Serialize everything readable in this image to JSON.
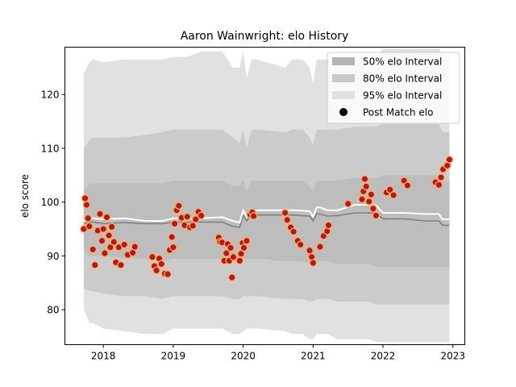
{
  "chart_data": {
    "type": "area",
    "title": "Aaron Wainwright: elo History",
    "xlabel": "",
    "ylabel": "elo score",
    "xlim": [
      2017.45,
      2023.17
    ],
    "ylim": [
      73.5,
      128.8
    ],
    "x_ticks": [
      {
        "value": 2018,
        "label": "2018"
      },
      {
        "value": 2019,
        "label": "2019"
      },
      {
        "value": 2020,
        "label": "2020"
      },
      {
        "value": 2021,
        "label": "2021"
      },
      {
        "value": 2022,
        "label": "2022"
      },
      {
        "value": 2023,
        "label": "2023"
      }
    ],
    "y_ticks": [
      {
        "value": 80,
        "label": "80"
      },
      {
        "value": 90,
        "label": "90"
      },
      {
        "value": 100,
        "label": "100"
      },
      {
        "value": 110,
        "label": "110"
      },
      {
        "value": 120,
        "label": "120"
      }
    ],
    "legend": {
      "position": "top-right",
      "entries": [
        {
          "label": "50% elo Interval",
          "kind": "band",
          "color": "#b4b4b4"
        },
        {
          "label": "80% elo Interval",
          "kind": "band",
          "color": "#c8c8c8"
        },
        {
          "label": "95% elo Interval",
          "kind": "band",
          "color": "#e1e1e1"
        },
        {
          "label": "Post Match elo",
          "kind": "marker",
          "color": "#000000"
        }
      ]
    },
    "colors": {
      "band95": "#e1e1e1",
      "band80": "#cbcbcb",
      "band50": "#bdbdbd",
      "mean_line": "#808080",
      "median_line": "#ffffff",
      "marker_fill": "#c0102a",
      "marker_edge": "#f5b84a"
    },
    "x": [
      2017.72,
      2017.8,
      2017.85,
      2018.0,
      2018.3,
      2018.6,
      2018.85,
      2019.0,
      2019.2,
      2019.4,
      2019.7,
      2019.85,
      2019.95,
      2020.0,
      2020.05,
      2020.12,
      2020.2,
      2020.6,
      2020.7,
      2020.85,
      2020.95,
      2021.0,
      2021.05,
      2021.1,
      2021.2,
      2021.35,
      2021.6,
      2021.8,
      2021.9,
      2022.0,
      2022.3,
      2022.6,
      2022.8,
      2022.85,
      2022.95
    ],
    "series": [
      {
        "name": "95% elo Interval",
        "role": "band95",
        "upper": [
          124,
          126,
          126.5,
          126,
          126.5,
          126.5,
          126.5,
          127,
          127,
          128,
          128,
          125,
          125,
          128,
          123,
          126.5,
          126.5,
          125,
          126.5,
          126.5,
          125,
          122,
          126.5,
          126.5,
          126.5,
          126.5,
          127,
          127,
          127,
          128.5,
          128.5,
          128.5,
          128.5,
          126.5,
          126.5
        ],
        "lower": [
          80,
          77.5,
          77.5,
          76.5,
          76,
          75.5,
          75.5,
          76.5,
          76.5,
          76.5,
          76.5,
          75.5,
          75.5,
          76,
          76.5,
          76.5,
          76.5,
          76,
          75.5,
          75.5,
          74.5,
          74.5,
          75.5,
          75.5,
          75.5,
          74.5,
          74.5,
          74.5,
          74,
          74,
          74,
          74,
          74,
          74,
          74
        ]
      },
      {
        "name": "80% elo Interval",
        "role": "band80",
        "upper": [
          110,
          111.5,
          112,
          112,
          112,
          112.5,
          113,
          113.5,
          113.5,
          113.5,
          113.5,
          112,
          111,
          113.5,
          110,
          113.5,
          113.5,
          113,
          113.5,
          113.5,
          112,
          110.5,
          113.5,
          113.5,
          113.5,
          113.5,
          114,
          114,
          114,
          114.5,
          114.5,
          114.5,
          114.5,
          113,
          113
        ],
        "lower": [
          84,
          83.5,
          83.5,
          83,
          82.5,
          82.5,
          82,
          82.5,
          82.5,
          82.5,
          82.5,
          82,
          82,
          82.5,
          82.5,
          82.5,
          82.5,
          82,
          82,
          82,
          81.5,
          81.5,
          82,
          82,
          82,
          81.5,
          81.5,
          81.5,
          81,
          81,
          81,
          81,
          81,
          81,
          81
        ]
      },
      {
        "name": "50% elo Interval",
        "role": "band50",
        "upper": [
          102,
          103.5,
          103.5,
          103.5,
          103.5,
          103.5,
          103.5,
          104,
          104,
          104,
          104,
          103,
          103,
          104,
          102,
          104,
          104,
          104,
          104,
          104,
          103,
          102,
          104,
          104,
          104,
          104,
          104.5,
          104.5,
          104.5,
          105,
          105,
          105,
          105,
          104,
          104
        ],
        "lower": [
          91,
          90,
          90,
          90,
          89.5,
          89.5,
          89,
          89.5,
          89.5,
          89.5,
          89.5,
          89,
          89,
          89.5,
          89.5,
          89.5,
          89.5,
          89,
          89,
          89,
          88.5,
          88.5,
          89,
          89,
          89,
          88.5,
          88.5,
          88.5,
          88,
          88,
          88,
          88,
          88,
          88,
          88
        ]
      },
      {
        "role": "mean",
        "values": [
          96,
          96.3,
          96.3,
          96,
          96.2,
          96,
          96,
          96.3,
          96.3,
          96.3,
          96.3,
          95.5,
          95.3,
          97.5,
          96.5,
          97.6,
          97.6,
          97.6,
          97.6,
          97.5,
          97.4,
          96.5,
          97.8,
          97.8,
          97.4,
          97.5,
          98,
          98,
          97.9,
          96.9,
          96.9,
          96.5,
          96.5,
          95.7,
          95.7
        ]
      },
      {
        "role": "median",
        "values": [
          96.5,
          97,
          97,
          96.8,
          97,
          96.5,
          96.5,
          97,
          97,
          97,
          97.2,
          96.5,
          96.2,
          98.5,
          97.3,
          98.3,
          98.5,
          98.5,
          98.5,
          98.4,
          98.3,
          97.3,
          99,
          99,
          98.5,
          98.5,
          99.5,
          99.5,
          99.4,
          98,
          98,
          97.8,
          97.8,
          96.8,
          96.8
        ]
      }
    ],
    "points": [
      [
        2017.72,
        95
      ],
      [
        2017.74,
        100.7
      ],
      [
        2017.76,
        99.5
      ],
      [
        2017.78,
        97
      ],
      [
        2017.8,
        95.5
      ],
      [
        2017.85,
        91.2
      ],
      [
        2017.88,
        88.3
      ],
      [
        2017.92,
        94.7
      ],
      [
        2017.95,
        97.8
      ],
      [
        2017.98,
        92.8
      ],
      [
        2018.0,
        95
      ],
      [
        2018.02,
        90.5
      ],
      [
        2018.05,
        97.2
      ],
      [
        2018.08,
        93.8
      ],
      [
        2018.1,
        91.6
      ],
      [
        2018.12,
        95.4
      ],
      [
        2018.15,
        92.6
      ],
      [
        2018.18,
        88.8
      ],
      [
        2018.22,
        91.6
      ],
      [
        2018.25,
        88.3
      ],
      [
        2018.3,
        92.1
      ],
      [
        2018.35,
        90.2
      ],
      [
        2018.42,
        90.6
      ],
      [
        2018.45,
        91.7
      ],
      [
        2018.7,
        89.8
      ],
      [
        2018.73,
        88.1
      ],
      [
        2018.76,
        87.3
      ],
      [
        2018.8,
        89.5
      ],
      [
        2018.83,
        88.5
      ],
      [
        2018.88,
        86.7
      ],
      [
        2018.92,
        86.6
      ],
      [
        2018.95,
        91.1
      ],
      [
        2018.98,
        93.5
      ],
      [
        2019.0,
        91.6
      ],
      [
        2019.02,
        96
      ],
      [
        2019.05,
        98.5
      ],
      [
        2019.08,
        99.3
      ],
      [
        2019.12,
        97.1
      ],
      [
        2019.16,
        95.7
      ],
      [
        2019.2,
        97.3
      ],
      [
        2019.24,
        95.3
      ],
      [
        2019.28,
        95.6
      ],
      [
        2019.32,
        96.8
      ],
      [
        2019.36,
        98.2
      ],
      [
        2019.4,
        97.5
      ],
      [
        2019.65,
        93.4
      ],
      [
        2019.67,
        92.6
      ],
      [
        2019.7,
        92.5
      ],
      [
        2019.73,
        89.1
      ],
      [
        2019.76,
        90.5
      ],
      [
        2019.78,
        92.2
      ],
      [
        2019.8,
        89.1
      ],
      [
        2019.82,
        91.5
      ],
      [
        2019.84,
        86.0
      ],
      [
        2019.86,
        89.8
      ],
      [
        2019.95,
        89.1
      ],
      [
        2019.97,
        90.4
      ],
      [
        2019.99,
        92.4
      ],
      [
        2020.01,
        91.5
      ],
      [
        2020.05,
        92.8
      ],
      [
        2020.1,
        97.7
      ],
      [
        2020.13,
        98.1
      ],
      [
        2020.15,
        97.4
      ],
      [
        2020.6,
        98
      ],
      [
        2020.63,
        96.7
      ],
      [
        2020.68,
        95.3
      ],
      [
        2020.72,
        94.5
      ],
      [
        2020.78,
        92.8
      ],
      [
        2020.82,
        92.1
      ],
      [
        2020.95,
        91.0
      ],
      [
        2020.98,
        89.8
      ],
      [
        2021.0,
        88.7
      ],
      [
        2021.1,
        91.7
      ],
      [
        2021.15,
        93.7
      ],
      [
        2021.2,
        94.6
      ],
      [
        2021.22,
        95.7
      ],
      [
        2021.5,
        99.7
      ],
      [
        2021.7,
        100.5
      ],
      [
        2021.72,
        102.0
      ],
      [
        2021.74,
        104.3
      ],
      [
        2021.76,
        102.9
      ],
      [
        2021.8,
        100.1
      ],
      [
        2021.83,
        101.4
      ],
      [
        2021.86,
        98.8
      ],
      [
        2021.9,
        97.5
      ],
      [
        2022.05,
        101.8
      ],
      [
        2022.1,
        102.3
      ],
      [
        2022.15,
        101.3
      ],
      [
        2022.3,
        104
      ],
      [
        2022.35,
        103.1
      ],
      [
        2022.75,
        103.7
      ],
      [
        2022.8,
        103.2
      ],
      [
        2022.83,
        104.6
      ],
      [
        2022.86,
        106.1
      ],
      [
        2022.92,
        106.8
      ],
      [
        2022.95,
        107.9
      ]
    ]
  }
}
